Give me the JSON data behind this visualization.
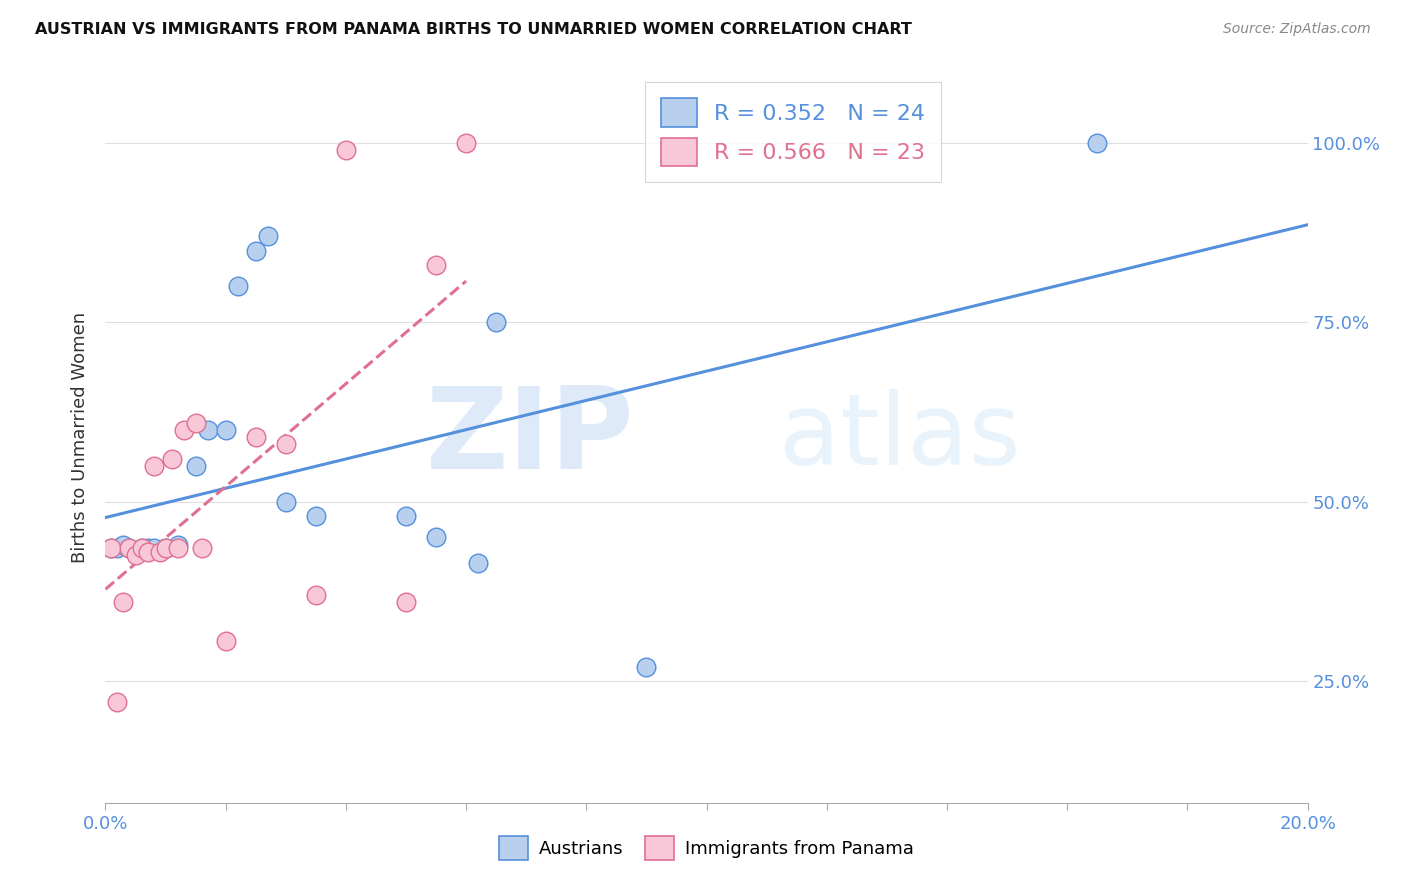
{
  "title": "AUSTRIAN VS IMMIGRANTS FROM PANAMA BIRTHS TO UNMARRIED WOMEN CORRELATION CHART",
  "source": "Source: ZipAtlas.com",
  "ylabel": "Births to Unmarried Women",
  "xlim": [
    0.0,
    0.2
  ],
  "ylim": [
    0.08,
    1.1
  ],
  "ytick_positions": [
    0.25,
    0.5,
    0.75,
    1.0
  ],
  "ytick_labels": [
    "25.0%",
    "50.0%",
    "75.0%",
    "100.0%"
  ],
  "xtick_label_left": "0.0%",
  "xtick_label_right": "20.0%",
  "legend1_text": "R = 0.352   N = 24",
  "legend2_text": "R = 0.566   N = 23",
  "watermark_zip": "ZIP",
  "watermark_atlas": "atlas",
  "blue_face": "#b8d0ee",
  "blue_edge": "#5590dd",
  "pink_face": "#f8c8d8",
  "pink_edge": "#e07090",
  "blue_line": "#5590dd",
  "pink_line": "#e07090",
  "grid_color": "#e0e0e0",
  "bg_color": "#ffffff",
  "austrians_x": [
    0.001,
    0.002,
    0.003,
    0.004,
    0.005,
    0.006,
    0.007,
    0.008,
    0.01,
    0.012,
    0.015,
    0.017,
    0.02,
    0.022,
    0.025,
    0.027,
    0.03,
    0.035,
    0.05,
    0.055,
    0.062,
    0.065,
    0.09,
    0.165
  ],
  "austrians_y": [
    0.435,
    0.435,
    0.44,
    0.435,
    0.43,
    0.435,
    0.435,
    0.435,
    0.435,
    0.44,
    0.55,
    0.6,
    0.6,
    0.8,
    0.85,
    0.87,
    0.5,
    0.48,
    0.48,
    0.45,
    0.415,
    0.75,
    0.27,
    1.0
  ],
  "panama_x": [
    0.001,
    0.002,
    0.003,
    0.004,
    0.005,
    0.006,
    0.007,
    0.008,
    0.009,
    0.01,
    0.011,
    0.012,
    0.013,
    0.015,
    0.016,
    0.02,
    0.025,
    0.03,
    0.035,
    0.04,
    0.05,
    0.055,
    0.06
  ],
  "panama_y": [
    0.435,
    0.22,
    0.36,
    0.435,
    0.425,
    0.435,
    0.43,
    0.55,
    0.43,
    0.435,
    0.56,
    0.435,
    0.6,
    0.61,
    0.435,
    0.305,
    0.59,
    0.58,
    0.37,
    0.99,
    0.36,
    0.83,
    1.0
  ]
}
